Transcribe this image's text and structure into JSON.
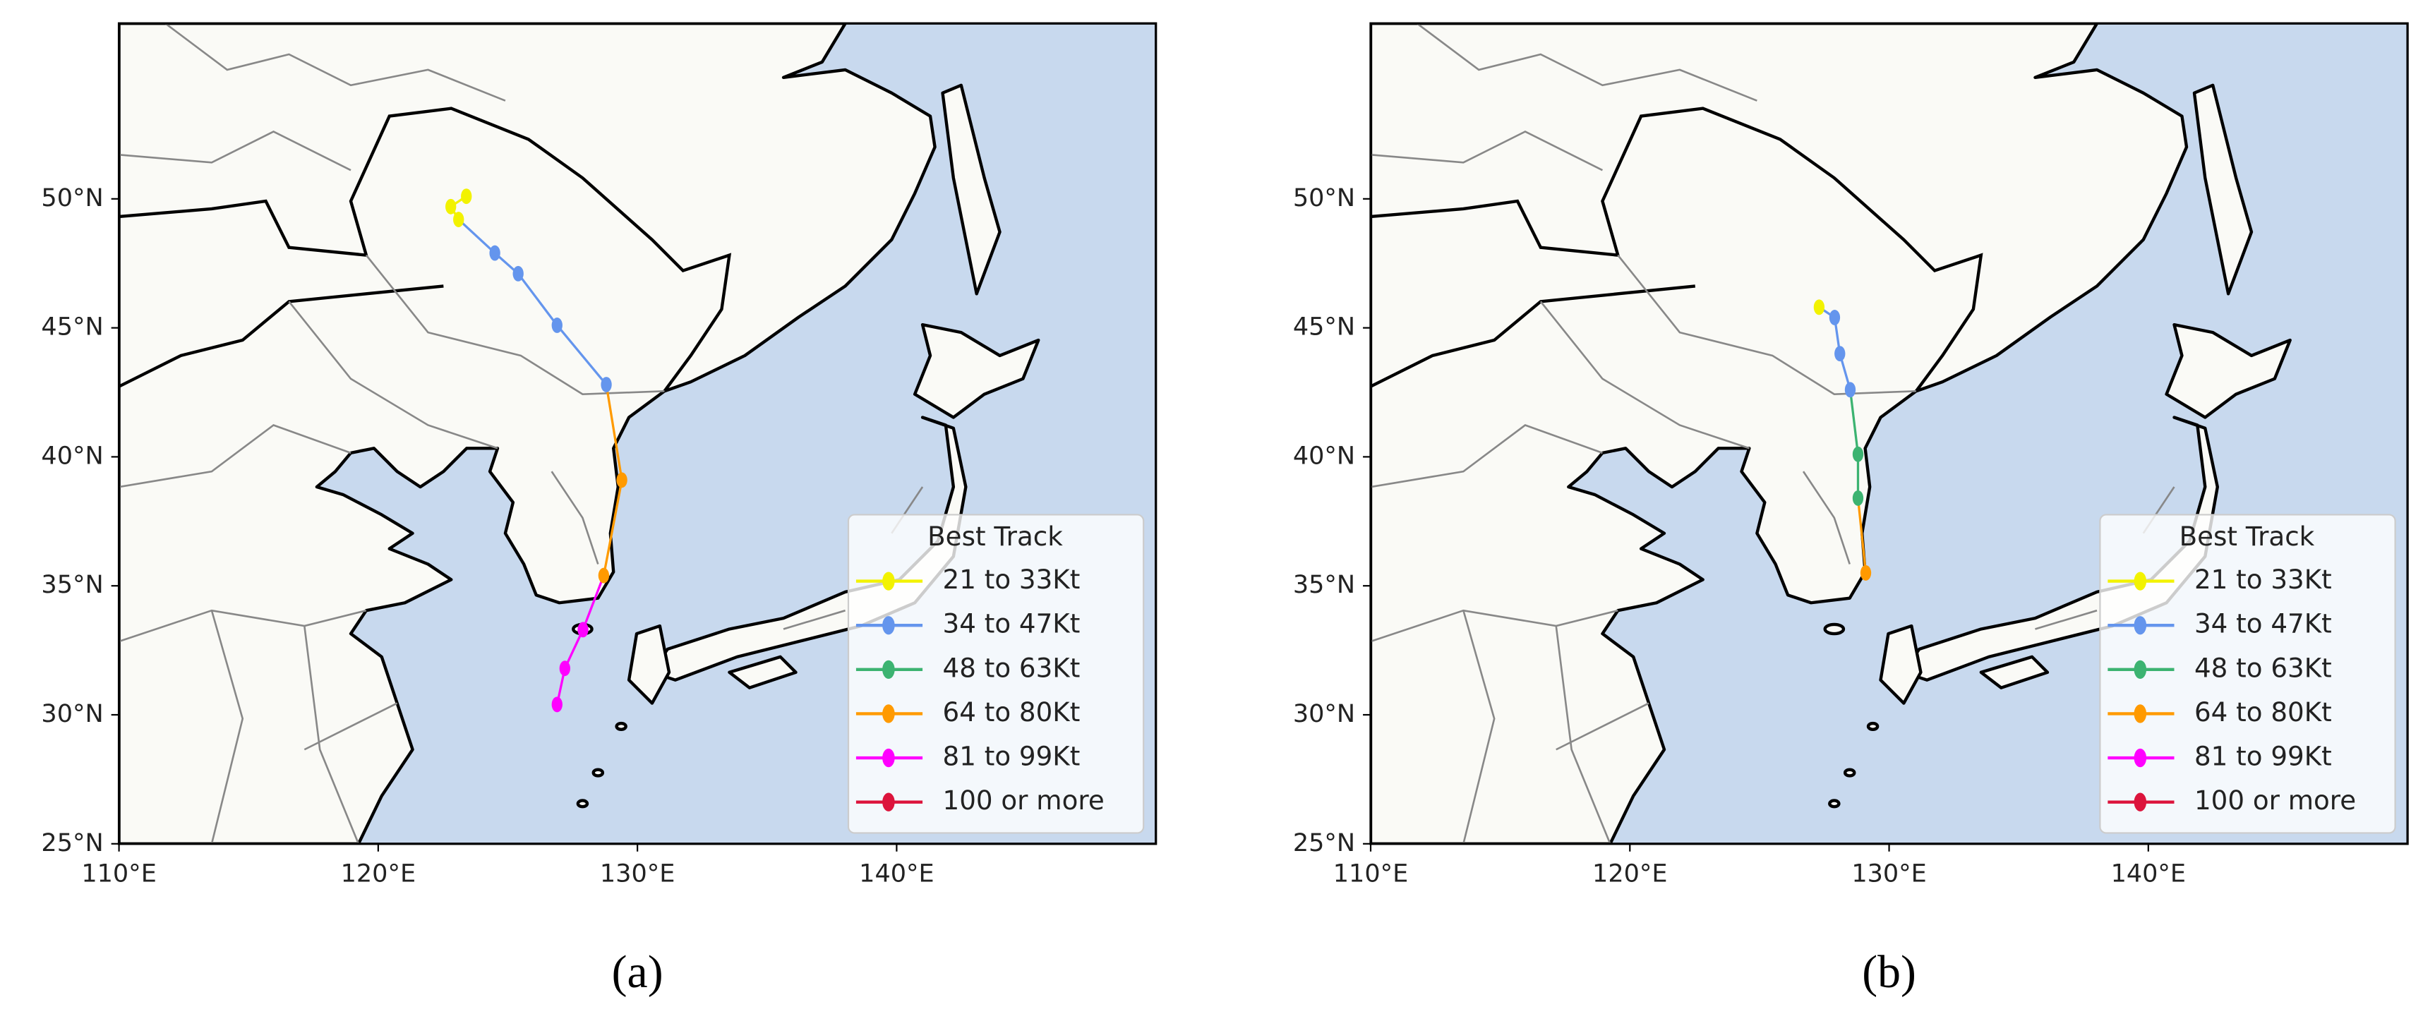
{
  "panels": [
    {
      "label": "(a)",
      "xlim": [
        110,
        150
      ],
      "ylim": [
        25,
        56.8
      ],
      "xticks": [
        {
          "value": 110,
          "label": "110°E"
        },
        {
          "value": 120,
          "label": "120°E"
        },
        {
          "value": 130,
          "label": "130°E"
        },
        {
          "value": 140,
          "label": "140°E"
        }
      ],
      "yticks": [
        {
          "value": 25,
          "label": "25°N"
        },
        {
          "value": 30,
          "label": "30°N"
        },
        {
          "value": 35,
          "label": "35°N"
        },
        {
          "value": 40,
          "label": "40°N"
        },
        {
          "value": 45,
          "label": "45°N"
        },
        {
          "value": 50,
          "label": "50°N"
        }
      ],
      "legend_title": "Best Track",
      "legend": [
        {
          "name": "21 to 33Kt",
          "color": "#f2f200"
        },
        {
          "name": "34 to 47Kt",
          "color": "#6495ed"
        },
        {
          "name": "48 to 63Kt",
          "color": "#3cb371"
        },
        {
          "name": "64 to 80Kt",
          "color": "#ff9a00"
        },
        {
          "name": "81 to 99Kt",
          "color": "#ff00ff"
        },
        {
          "name": "100 or more",
          "color": "#dc143c"
        }
      ],
      "track": {
        "lon": [
          126.9,
          127.2,
          127.9,
          128.7,
          129.4,
          128.8,
          126.9,
          125.4,
          124.5,
          123.1,
          122.8,
          123.4
        ],
        "lat": [
          30.4,
          31.8,
          33.3,
          35.4,
          39.1,
          42.8,
          45.1,
          47.1,
          47.9,
          49.2,
          49.7,
          50.1
        ],
        "color": [
          "#ff00ff",
          "#ff00ff",
          "#ff00ff",
          "#ff9a00",
          "#ff9a00",
          "#6495ed",
          "#6495ed",
          "#6495ed",
          "#6495ed",
          "#f2f200",
          "#f2f200",
          "#f2f200"
        ]
      }
    },
    {
      "label": "(b)",
      "xlim": [
        110,
        150
      ],
      "ylim": [
        25,
        56.8
      ],
      "xticks": [
        {
          "value": 110,
          "label": "110°E"
        },
        {
          "value": 120,
          "label": "120°E"
        },
        {
          "value": 130,
          "label": "130°E"
        },
        {
          "value": 140,
          "label": "140°E"
        }
      ],
      "yticks": [
        {
          "value": 25,
          "label": "25°N"
        },
        {
          "value": 30,
          "label": "30°N"
        },
        {
          "value": 35,
          "label": "35°N"
        },
        {
          "value": 40,
          "label": "40°N"
        },
        {
          "value": 45,
          "label": "45°N"
        },
        {
          "value": 50,
          "label": "50°N"
        }
      ],
      "legend_title": "Best Track",
      "legend": [
        {
          "name": "21 to 33Kt",
          "color": "#f2f200"
        },
        {
          "name": "34 to 47Kt",
          "color": "#6495ed"
        },
        {
          "name": "48 to 63Kt",
          "color": "#3cb371"
        },
        {
          "name": "64 to 80Kt",
          "color": "#ff9a00"
        },
        {
          "name": "81 to 99Kt",
          "color": "#ff00ff"
        },
        {
          "name": "100 or more",
          "color": "#dc143c"
        }
      ],
      "track": {
        "lon": [
          129.1,
          128.8,
          128.8,
          128.5,
          128.1,
          127.9,
          127.3
        ],
        "lat": [
          35.5,
          38.4,
          40.1,
          42.6,
          44.0,
          45.4,
          45.8
        ],
        "color": [
          "#ff9a00",
          "#3cb371",
          "#3cb371",
          "#6495ed",
          "#6495ed",
          "#6495ed",
          "#f2f200"
        ]
      }
    }
  ]
}
